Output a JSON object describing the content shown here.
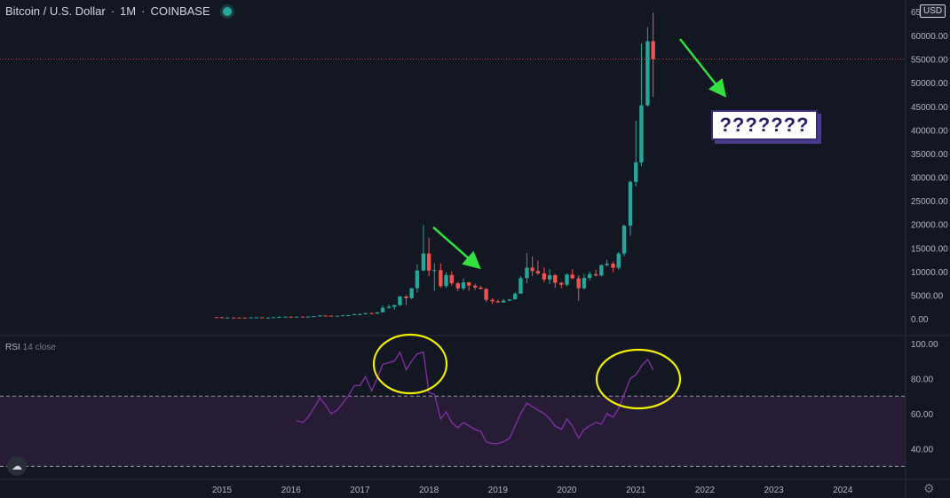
{
  "header": {
    "symbol": "Bitcoin / U.S. Dollar",
    "interval": "1M",
    "exchange": "COINBASE"
  },
  "currency_badge": "USD",
  "rsi_label": {
    "name": "RSI",
    "params": "14 close"
  },
  "annotation_text": "???????",
  "colors": {
    "up": "#26a69a",
    "down": "#ef5350",
    "rsi_line": "#7e2f9f",
    "circle": "#f0f000",
    "arrow": "#33e03f",
    "band": "#2a1d3a"
  },
  "icons": {
    "logo": "tradingview-cloud-icon",
    "settings": "gear-icon"
  },
  "chart_data": [
    {
      "type": "candlestick",
      "title": "Bitcoin / U.S. Dollar",
      "x_ticks": [
        "2015",
        "2016",
        "2017",
        "2018",
        "2019",
        "2020",
        "2021",
        "2022",
        "2023",
        "2024"
      ],
      "y_ticks": [
        0,
        5000,
        10000,
        15000,
        20000,
        25000,
        30000,
        35000,
        40000,
        45000,
        50000,
        55000,
        60000
      ],
      "y_tick_labels": [
        "0.00",
        "5000.00",
        "10000.00",
        "15000.00",
        "20000.00",
        "25000.00",
        "30000.00",
        "35000.00",
        "40000.00",
        "45000.00",
        "50000.00",
        "55000.00",
        "60000.00"
      ],
      "y_top_partial_label": "65",
      "ylim": [
        -1500,
        65500
      ],
      "horizontal_line": 55000,
      "candles": [
        [
          2014.92,
          320,
          350,
          300,
          310
        ],
        [
          2015.0,
          310,
          320,
          180,
          220
        ],
        [
          2015.08,
          220,
          280,
          210,
          250
        ],
        [
          2015.17,
          250,
          300,
          240,
          245
        ],
        [
          2015.25,
          245,
          260,
          220,
          235
        ],
        [
          2015.33,
          235,
          250,
          225,
          230
        ],
        [
          2015.42,
          230,
          270,
          225,
          265
        ],
        [
          2015.5,
          265,
          320,
          260,
          285
        ],
        [
          2015.58,
          285,
          290,
          200,
          230
        ],
        [
          2015.67,
          230,
          245,
          225,
          236
        ],
        [
          2015.75,
          236,
          330,
          235,
          312
        ],
        [
          2015.83,
          312,
          500,
          310,
          378
        ],
        [
          2015.92,
          378,
          470,
          360,
          430
        ],
        [
          2016.0,
          430,
          440,
          350,
          370
        ],
        [
          2016.08,
          370,
          450,
          365,
          435
        ],
        [
          2016.17,
          435,
          440,
          400,
          416
        ],
        [
          2016.25,
          416,
          470,
          410,
          448
        ],
        [
          2016.33,
          448,
          540,
          440,
          530
        ],
        [
          2016.42,
          530,
          780,
          520,
          673
        ],
        [
          2016.5,
          673,
          700,
          600,
          624
        ],
        [
          2016.58,
          624,
          630,
          560,
          573
        ],
        [
          2016.67,
          573,
          620,
          570,
          609
        ],
        [
          2016.75,
          609,
          740,
          600,
          700
        ],
        [
          2016.83,
          700,
          750,
          690,
          745
        ],
        [
          2016.92,
          745,
          980,
          740,
          963
        ],
        [
          2017.0,
          963,
          1150,
          800,
          970
        ],
        [
          2017.08,
          970,
          1200,
          920,
          1190
        ],
        [
          2017.17,
          1190,
          1280,
          900,
          1080
        ],
        [
          2017.25,
          1080,
          1400,
          1050,
          1350
        ],
        [
          2017.33,
          1350,
          2800,
          1340,
          2300
        ],
        [
          2017.42,
          2300,
          3000,
          2100,
          2500
        ],
        [
          2017.5,
          2500,
          2950,
          1900,
          2875
        ],
        [
          2017.58,
          2875,
          4800,
          2700,
          4700
        ],
        [
          2017.67,
          4700,
          5000,
          2900,
          4340
        ],
        [
          2017.75,
          4340,
          6500,
          4100,
          6450
        ],
        [
          2017.83,
          6450,
          11500,
          5500,
          10200
        ],
        [
          2017.92,
          10200,
          19800,
          10100,
          13800
        ],
        [
          2018.0,
          13800,
          17200,
          9000,
          10200
        ],
        [
          2018.08,
          10200,
          11700,
          5900,
          10300
        ],
        [
          2018.17,
          10300,
          11700,
          6500,
          6900
        ],
        [
          2018.25,
          6900,
          9800,
          6500,
          9250
        ],
        [
          2018.33,
          9250,
          10000,
          7000,
          7500
        ],
        [
          2018.42,
          7500,
          7800,
          5800,
          6400
        ],
        [
          2018.5,
          6400,
          8500,
          6000,
          7700
        ],
        [
          2018.58,
          7700,
          7800,
          5900,
          7000
        ],
        [
          2018.67,
          7000,
          7400,
          6100,
          6600
        ],
        [
          2018.75,
          6600,
          7000,
          6200,
          6300
        ],
        [
          2018.83,
          6300,
          6500,
          3500,
          4000
        ],
        [
          2018.92,
          4000,
          4300,
          3100,
          3700
        ],
        [
          2019.0,
          3700,
          4100,
          3400,
          3450
        ],
        [
          2019.08,
          3450,
          4200,
          3400,
          3850
        ],
        [
          2019.17,
          3850,
          4100,
          3700,
          4100
        ],
        [
          2019.25,
          4100,
          5600,
          4100,
          5300
        ],
        [
          2019.33,
          5300,
          9000,
          5300,
          8600
        ],
        [
          2019.42,
          8600,
          13900,
          7500,
          10800
        ],
        [
          2019.5,
          10800,
          13200,
          9000,
          10100
        ],
        [
          2019.58,
          10100,
          12300,
          9300,
          9600
        ],
        [
          2019.67,
          9600,
          10900,
          7700,
          8300
        ],
        [
          2019.75,
          8300,
          10500,
          7300,
          9200
        ],
        [
          2019.83,
          9200,
          9500,
          6500,
          7600
        ],
        [
          2019.92,
          7600,
          7800,
          6400,
          7200
        ],
        [
          2020.0,
          7200,
          9600,
          6850,
          9350
        ],
        [
          2020.08,
          9350,
          10500,
          8400,
          8550
        ],
        [
          2020.17,
          8550,
          9200,
          3800,
          6450
        ],
        [
          2020.25,
          6450,
          9500,
          6150,
          8650
        ],
        [
          2020.33,
          8650,
          10000,
          8100,
          9450
        ],
        [
          2020.42,
          9450,
          10400,
          8900,
          9150
        ],
        [
          2020.5,
          9150,
          11500,
          8950,
          11350
        ],
        [
          2020.58,
          11350,
          12500,
          11000,
          11650
        ],
        [
          2020.67,
          11650,
          12100,
          9850,
          10800
        ],
        [
          2020.75,
          10800,
          14100,
          10400,
          13800
        ],
        [
          2020.83,
          13800,
          19900,
          13200,
          19700
        ],
        [
          2020.92,
          19700,
          29300,
          17600,
          29000
        ],
        [
          2021.0,
          29000,
          42000,
          28000,
          33100
        ],
        [
          2021.08,
          33100,
          58300,
          32300,
          45200
        ],
        [
          2021.17,
          45200,
          61800,
          44900,
          58800
        ],
        [
          2021.25,
          58800,
          64900,
          47000,
          55000
        ]
      ]
    },
    {
      "type": "line",
      "title": "RSI 14 close",
      "y_ticks": [
        40,
        60,
        80,
        100
      ],
      "y_tick_labels": [
        "40.00",
        "60.00",
        "80.00",
        "100.00"
      ],
      "ylim": [
        30,
        100
      ],
      "band": [
        30,
        70
      ],
      "series": [
        {
          "x": [
            2016.08,
            2016.17,
            2016.25,
            2016.33,
            2016.42,
            2016.5,
            2016.58,
            2016.67,
            2016.75,
            2016.83,
            2016.92,
            2017.0,
            2017.08,
            2017.17,
            2017.25,
            2017.33,
            2017.42,
            2017.5,
            2017.58,
            2017.67,
            2017.75,
            2017.83,
            2017.92,
            2018.0,
            2018.08,
            2018.17,
            2018.25,
            2018.33,
            2018.42,
            2018.5,
            2018.58,
            2018.67,
            2018.75,
            2018.83,
            2018.92,
            2019.0,
            2019.08,
            2019.17,
            2019.25,
            2019.33,
            2019.42,
            2019.5,
            2019.58,
            2019.67,
            2019.75,
            2019.83,
            2019.92,
            2020.0,
            2020.08,
            2020.17,
            2020.25,
            2020.33,
            2020.42,
            2020.5,
            2020.58,
            2020.67,
            2020.75,
            2020.83,
            2020.92,
            2021.0,
            2021.08,
            2021.17,
            2021.25
          ],
          "values": [
            56,
            55,
            58,
            63,
            69,
            65,
            60,
            62,
            66,
            70,
            76,
            76,
            81,
            73,
            80,
            88,
            89,
            90,
            95,
            85,
            90,
            94,
            95,
            72,
            71,
            57,
            61,
            55,
            52,
            55,
            53,
            51,
            50,
            44,
            43,
            43,
            44,
            46,
            53,
            60,
            66,
            64,
            62,
            60,
            57,
            53,
            51,
            57,
            53,
            46,
            51,
            53,
            55,
            54,
            60,
            58,
            63,
            71,
            80,
            82,
            87,
            91,
            85
          ]
        }
      ]
    }
  ]
}
